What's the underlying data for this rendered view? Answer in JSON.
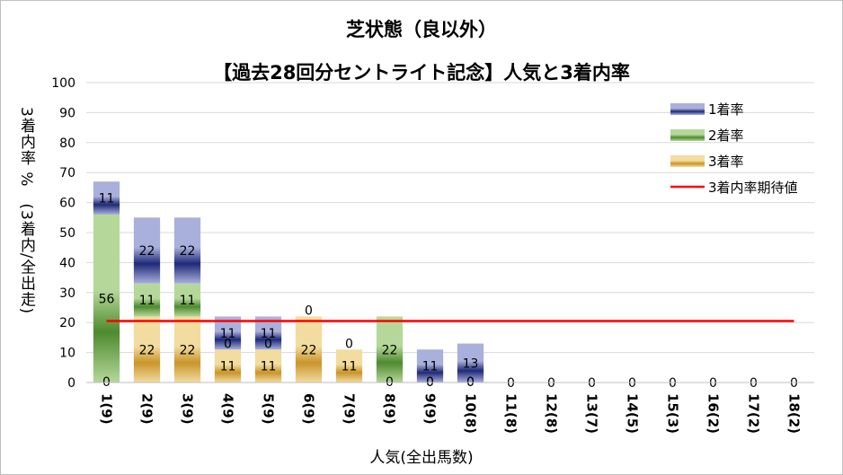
{
  "chart_data": {
    "type": "bar",
    "stacked": true,
    "title": "芝状態（良以外）",
    "subtitle": "【過去28回分セントライト記念】人気と3着内率",
    "xlabel": "人気(全出馬数)",
    "ylabel": "3着内率 %　(3着内/全出走)",
    "ylim": [
      0,
      100
    ],
    "yticks": [
      0,
      10,
      20,
      30,
      40,
      50,
      60,
      70,
      80,
      90,
      100
    ],
    "categories": [
      "1(9)",
      "2(9)",
      "3(9)",
      "4(9)",
      "5(9)",
      "6(9)",
      "7(9)",
      "8(9)",
      "9(9)",
      "10(8)",
      "11(8)",
      "12(8)",
      "13(7)",
      "14(5)",
      "15(3)",
      "16(2)",
      "17(2)",
      "18(2)"
    ],
    "series": [
      {
        "name": "3着率",
        "values": [
          0,
          22,
          22,
          11,
          11,
          22,
          11,
          0,
          0,
          0,
          0,
          0,
          0,
          0,
          0,
          0,
          0,
          0
        ],
        "color": "#d9a72a"
      },
      {
        "name": "2着率",
        "values": [
          56,
          11,
          11,
          0,
          0,
          0,
          0,
          22,
          0,
          0,
          0,
          0,
          0,
          0,
          0,
          0,
          0,
          0
        ],
        "color": "#6aa84f"
      },
      {
        "name": "1着率",
        "values": [
          11,
          22,
          22,
          11,
          11,
          0,
          0,
          0,
          11,
          13,
          0,
          0,
          0,
          0,
          0,
          0,
          0,
          0
        ],
        "color": "#2e3a87"
      }
    ],
    "reference_line": {
      "name": "3着内率期待値",
      "value": 20.5,
      "color": "#ff0000"
    },
    "legend_position": "top-right",
    "grid": true
  }
}
